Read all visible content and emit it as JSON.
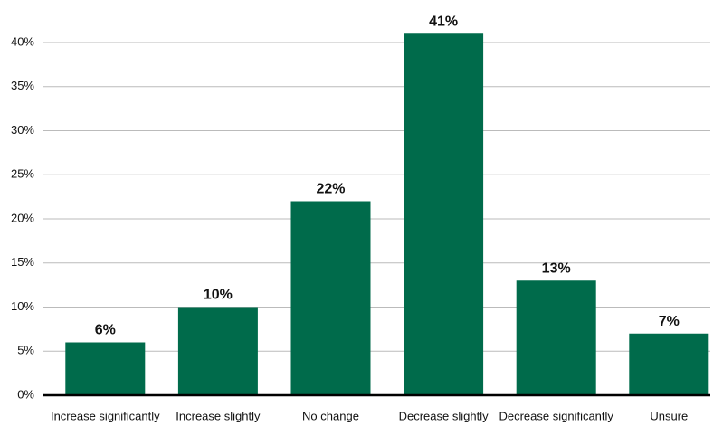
{
  "chart_data": {
    "type": "bar",
    "categories": [
      "Increase significantly",
      "Increase slightly",
      "No change",
      "Decrease slightly",
      "Decrease significantly",
      "Unsure"
    ],
    "values": [
      6,
      10,
      22,
      41,
      13,
      7
    ],
    "value_labels": [
      "6%",
      "10%",
      "22%",
      "41%",
      "13%",
      "7%"
    ],
    "color": "#006b4b",
    "ylim": [
      0,
      44
    ],
    "yticks": [
      {
        "value": 0,
        "label": "0%"
      },
      {
        "value": 5,
        "label": "5%"
      },
      {
        "value": 10,
        "label": "10%"
      },
      {
        "value": 15,
        "label": "15%"
      },
      {
        "value": 20,
        "label": "20%"
      },
      {
        "value": 25,
        "label": "25%"
      },
      {
        "value": 30,
        "label": "30%"
      },
      {
        "value": 35,
        "label": "35%"
      },
      {
        "value": 40,
        "label": "40%"
      }
    ],
    "grid": true
  }
}
